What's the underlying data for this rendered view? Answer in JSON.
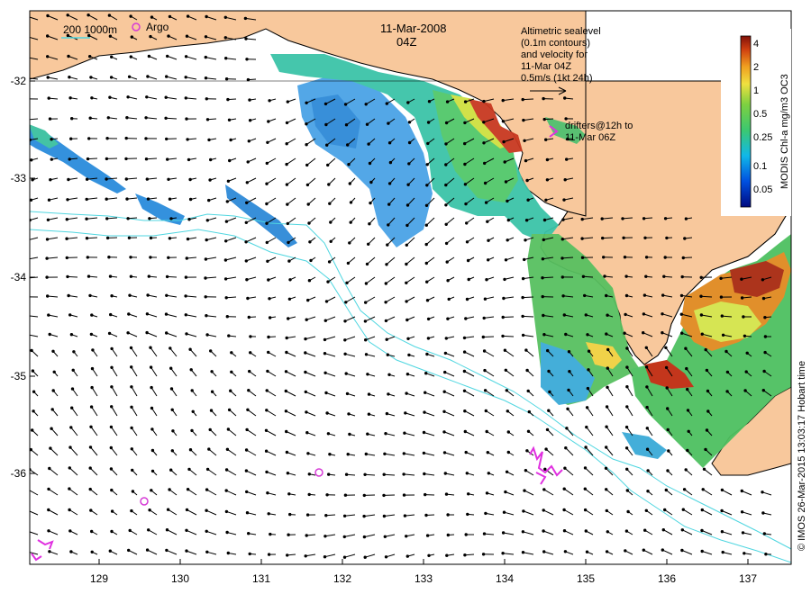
{
  "map": {
    "date": "11-Mar-2008",
    "time": "04Z",
    "legend_isobaths": "200  1000m",
    "legend_argo": "Argo",
    "sealevel_note": [
      "Altimetric sealevel",
      "(0.1m contours)",
      "and velocity for",
      "11-Mar 04Z",
      "0.5m/s (1kt 24h)"
    ],
    "drifters_note": [
      "drifters@12h to",
      "11-Mar 06Z"
    ],
    "colorbar_title": "MODIS Chl-a mg/m3 OC3",
    "colorbar_ticks": [
      "4",
      "2",
      "1",
      "0.5",
      "0.25",
      "0.1",
      "0.05"
    ],
    "credit": "© IMOS 26-Mar-2015 13:03:17 Hobart time",
    "lon_labels": [
      "129",
      "130",
      "131",
      "132",
      "133",
      "134",
      "135",
      "136",
      "137"
    ],
    "lat_labels": [
      "-32",
      "-33",
      "-34",
      "-35",
      "-36"
    ],
    "colors": {
      "land": "#f8c89c",
      "isobath": "#4fd6e0",
      "argo": "#d63ad6",
      "drifter": "#e030e0",
      "arrow": "#000000"
    }
  }
}
